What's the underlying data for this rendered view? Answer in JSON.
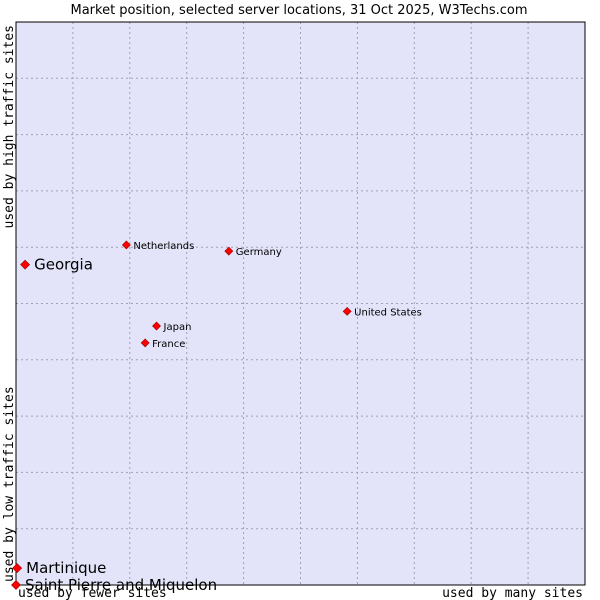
{
  "chart_data": {
    "type": "scatter",
    "title": "Market position, selected server locations, 31 Oct 2025, W3Techs.com",
    "xlabel_left": "used by fewer sites",
    "xlabel_right": "used by many sites",
    "ylabel_bottom": "used by low traffic sites",
    "ylabel_top": "used by high traffic sites",
    "xlim": [
      0,
      100
    ],
    "ylim": [
      0,
      100
    ],
    "grid": true,
    "colors": {
      "plot_bg": "#e3e4fa",
      "grid": "#a0a0b0",
      "marker": "#ff0000",
      "marker_edge": "#990000",
      "frame": "#000000"
    },
    "points": [
      {
        "label": "Netherlands",
        "x": 19.4,
        "y": 60.4,
        "emphasis": false
      },
      {
        "label": "Germany",
        "x": 37.4,
        "y": 59.3,
        "emphasis": false
      },
      {
        "label": "Georgia",
        "x": 1.6,
        "y": 56.9,
        "emphasis": true
      },
      {
        "label": "United States",
        "x": 58.2,
        "y": 48.6,
        "emphasis": false
      },
      {
        "label": "Japan",
        "x": 24.7,
        "y": 46.0,
        "emphasis": false
      },
      {
        "label": "France",
        "x": 22.7,
        "y": 43.0,
        "emphasis": false
      },
      {
        "label": "Martinique",
        "x": 0.2,
        "y": 3.0,
        "emphasis": true
      },
      {
        "label": "Saint Pierre and Miquelon",
        "x": 0.0,
        "y": 0.0,
        "emphasis": true
      }
    ]
  }
}
